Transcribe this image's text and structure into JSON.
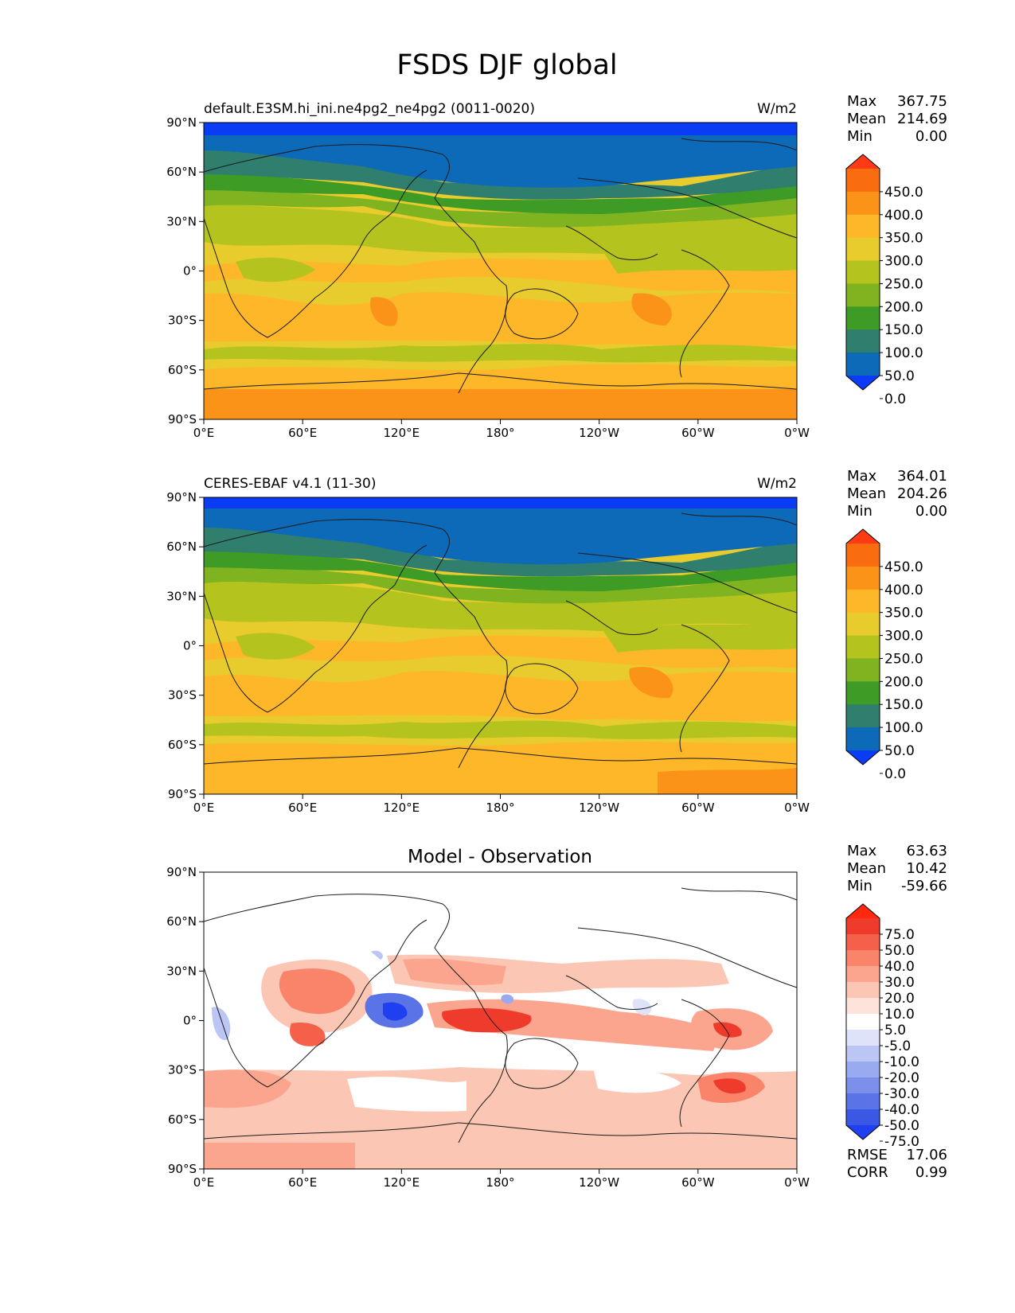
{
  "title": "FSDS DJF global",
  "axes": {
    "lat_ticks": [
      "90°N",
      "60°N",
      "30°N",
      "0°",
      "30°S",
      "60°S",
      "90°S"
    ],
    "lon_ticks": [
      "0°E",
      "60°E",
      "120°E",
      "180°",
      "120°W",
      "60°W",
      "0°W"
    ]
  },
  "panels": [
    {
      "id": "model",
      "title_left": "default.E3SM.hi_ini.ne4pg2_ne4pg2 (0011-0020)",
      "title_center": "",
      "units": "W/m2",
      "stats": [
        {
          "label": "Max",
          "value": "367.75"
        },
        {
          "label": "Mean",
          "value": "214.69"
        },
        {
          "label": "Min",
          "value": "0.00"
        }
      ],
      "colorbar": {
        "labels": [
          "450.0",
          "400.0",
          "350.0",
          "300.0",
          "250.0",
          "200.0",
          "150.0",
          "100.0",
          "50.0",
          "0.0"
        ],
        "colors": [
          "#ff3a14",
          "#fa6c10",
          "#fb9318",
          "#fdb728",
          "#e8cc2e",
          "#b5c31e",
          "#7fb320",
          "#3e9b26",
          "#2f7e6e",
          "#0d6ab8",
          "#0a3cf5"
        ]
      }
    },
    {
      "id": "obs",
      "title_left": "CERES-EBAF v4.1 (11-30)",
      "title_center": "",
      "units": "W/m2",
      "stats": [
        {
          "label": "Max",
          "value": "364.01"
        },
        {
          "label": "Mean",
          "value": "204.26"
        },
        {
          "label": "Min",
          "value": "0.00"
        }
      ],
      "colorbar": {
        "labels": [
          "450.0",
          "400.0",
          "350.0",
          "300.0",
          "250.0",
          "200.0",
          "150.0",
          "100.0",
          "50.0",
          "0.0"
        ],
        "colors": [
          "#ff3a14",
          "#fa6c10",
          "#fb9318",
          "#fdb728",
          "#e8cc2e",
          "#b5c31e",
          "#7fb320",
          "#3e9b26",
          "#2f7e6e",
          "#0d6ab8",
          "#0a3cf5"
        ]
      }
    },
    {
      "id": "diff",
      "title_left": "",
      "title_center": "Model - Observation",
      "units": "",
      "stats": [
        {
          "label": "Max",
          "value": "63.63"
        },
        {
          "label": "Mean",
          "value": "10.42"
        },
        {
          "label": "Min",
          "value": "-59.66"
        }
      ],
      "colorbar": {
        "labels": [
          "75.0",
          "50.0",
          "40.0",
          "30.0",
          "20.0",
          "10.0",
          "5.0",
          "-5.0",
          "-10.0",
          "-20.0",
          "-30.0",
          "-40.0",
          "-50.0",
          "-75.0"
        ],
        "colors": [
          "#ff2a0e",
          "#ef3b2c",
          "#f5604a",
          "#f9846a",
          "#fba58e",
          "#fcc6b4",
          "#fde3da",
          "#ffffff",
          "#dfe3fa",
          "#bcc6f5",
          "#9aaaf0",
          "#7b8feb",
          "#5a73e7",
          "#3b58e4",
          "#1f40f0"
        ]
      },
      "metrics": [
        {
          "label": "RMSE",
          "value": "17.06"
        },
        {
          "label": "CORR",
          "value": "0.99"
        }
      ]
    }
  ]
}
